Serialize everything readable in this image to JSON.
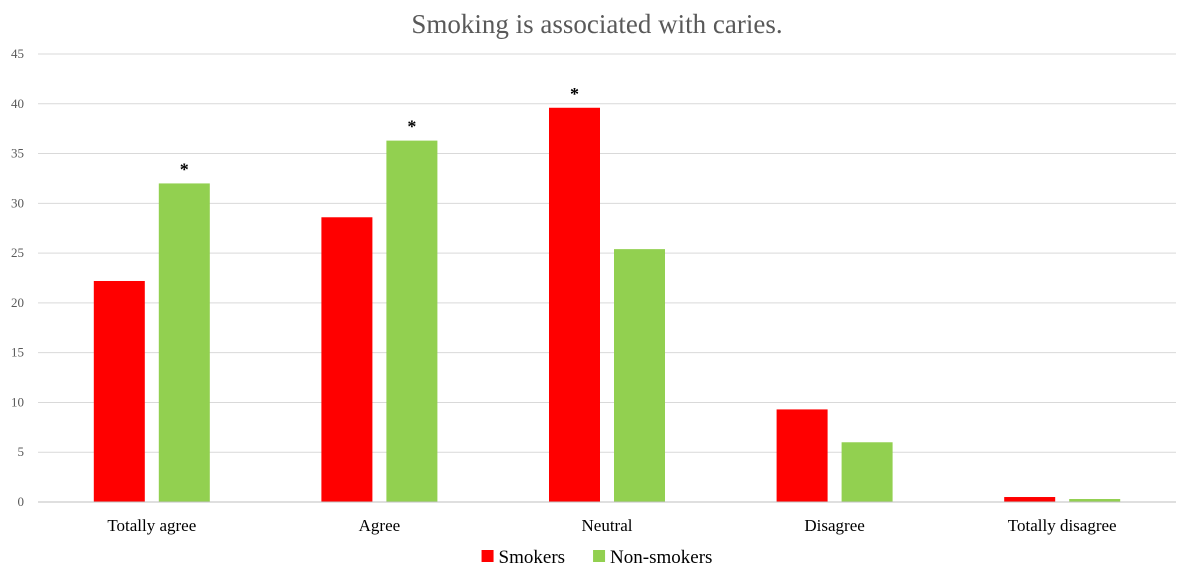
{
  "chart_data": {
    "type": "bar",
    "title": "Smoking is associated with caries.",
    "xlabel": "",
    "ylabel": "",
    "categories": [
      "Totally agree",
      "Agree",
      "Neutral",
      "Disagree",
      "Totally disagree"
    ],
    "series": [
      {
        "name": "Smokers",
        "color": "#ff0000",
        "values": [
          22.2,
          28.6,
          39.6,
          9.3,
          0.5
        ]
      },
      {
        "name": "Non-smokers",
        "color": "#92d050",
        "values": [
          32.0,
          36.3,
          25.4,
          6.0,
          0.3
        ]
      }
    ],
    "ylim": [
      0,
      45
    ],
    "yticks": [
      "0",
      "5",
      "10",
      "15",
      "20",
      "25",
      "30",
      "35",
      "40",
      "45"
    ],
    "grid": true,
    "legend_position": "bottom",
    "annotations": [
      {
        "text": "*",
        "category": "Totally agree",
        "series": "Non-smokers"
      },
      {
        "text": "*",
        "category": "Agree",
        "series": "Non-smokers"
      },
      {
        "text": "*",
        "category": "Neutral",
        "series": "Smokers"
      }
    ]
  }
}
